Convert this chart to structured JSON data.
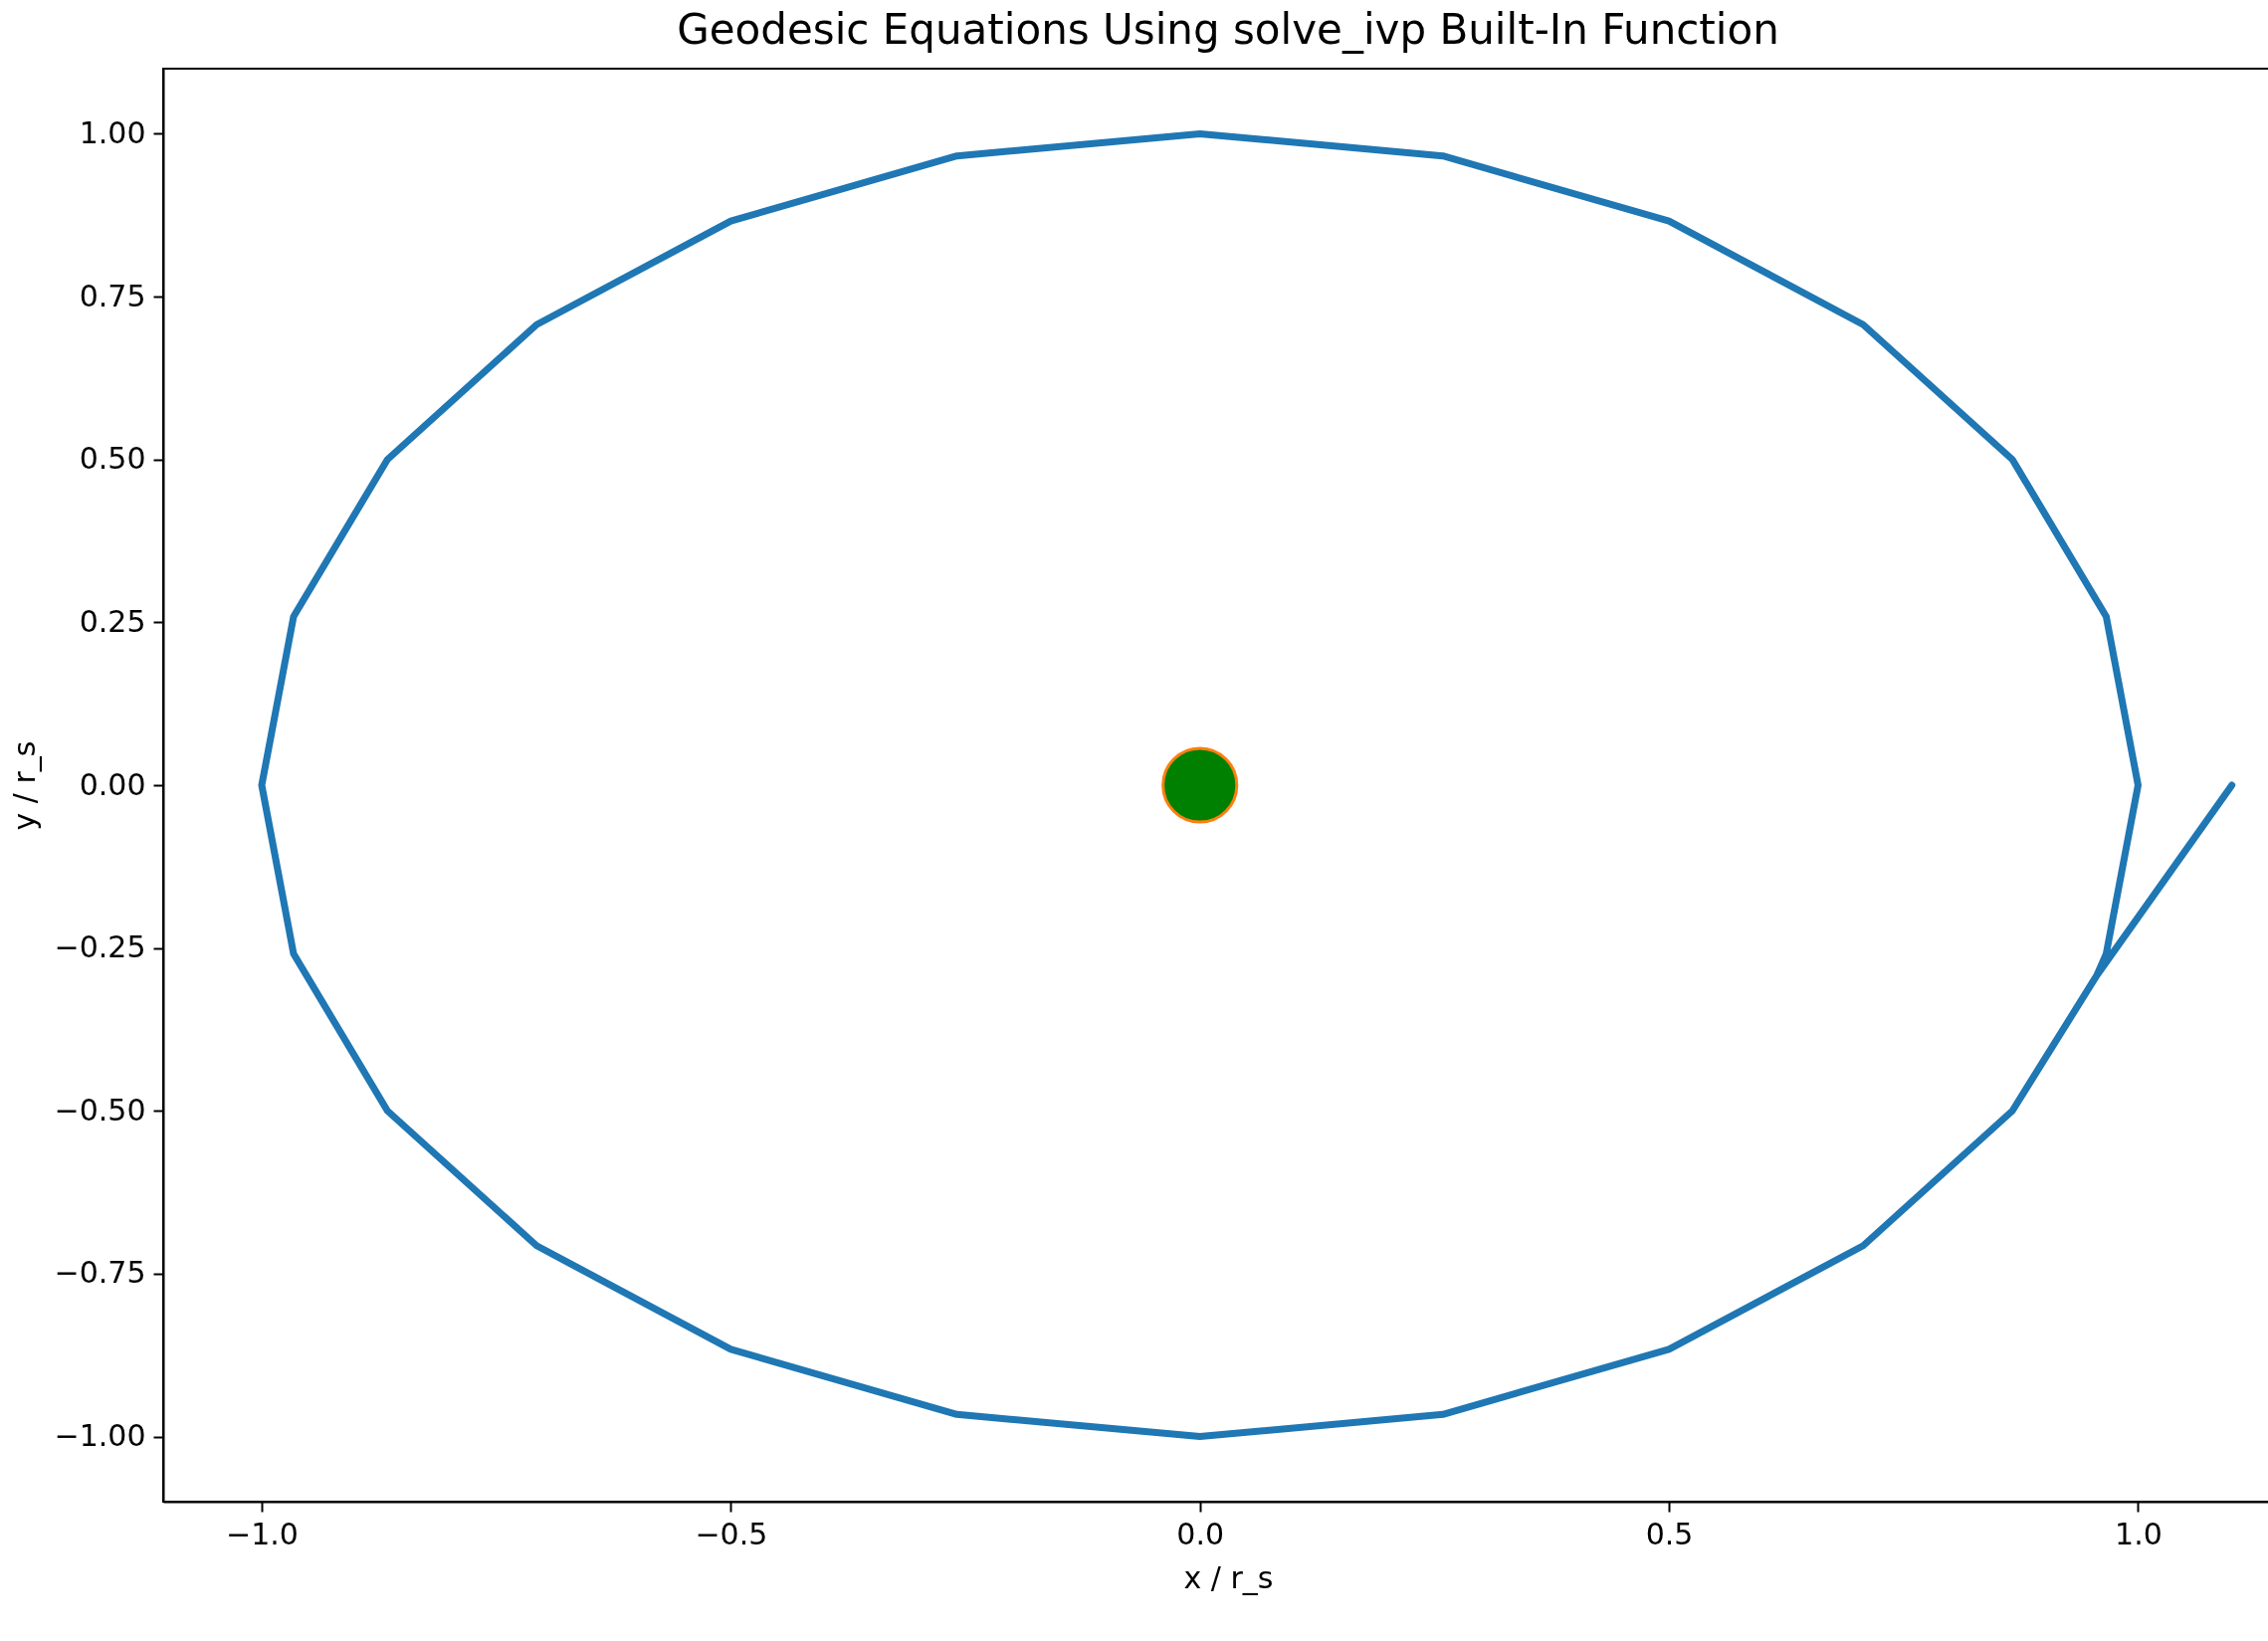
{
  "chart_data": {
    "type": "line",
    "title": "Geodesic Equations Using solve_ivp Built-In Function",
    "xlabel": "x / r_s",
    "ylabel": "y / r_s",
    "grid": false,
    "xlim": [
      -1.105,
      1.165
    ],
    "ylim": [
      -1.1,
      1.1
    ],
    "xticks": [
      {
        "value": -1,
        "label": "−1.0"
      },
      {
        "value": -0.5,
        "label": "−0.5"
      },
      {
        "value": 0,
        "label": "0.0"
      },
      {
        "value": 0.5,
        "label": "0.5"
      },
      {
        "value": 1,
        "label": "1.0"
      }
    ],
    "yticks": [
      {
        "value": -1,
        "label": "−1.00"
      },
      {
        "value": -0.75,
        "label": "−0.75"
      },
      {
        "value": -0.5,
        "label": "−0.50"
      },
      {
        "value": -0.25,
        "label": "−0.25"
      },
      {
        "value": 0,
        "label": "0.00"
      },
      {
        "value": 0.25,
        "label": "0.25"
      },
      {
        "value": 0.5,
        "label": "0.50"
      },
      {
        "value": 0.75,
        "label": "0.75"
      },
      {
        "value": 1,
        "label": "1.00"
      }
    ],
    "series": [
      {
        "color": "#1f77b4",
        "marker": "none",
        "x": [
          1.1,
          0.956,
          0.866,
          0.707,
          0.5,
          0.259,
          0,
          -0.259,
          -0.5,
          -0.707,
          -0.866,
          -0.966,
          -1,
          -0.966,
          -0.866,
          -0.707,
          -0.5,
          -0.259,
          0,
          0.259,
          0.5,
          0.707,
          0.866,
          0.966,
          1,
          0.966,
          0.956
        ],
        "values": [
          0,
          -0.292,
          -0.5,
          -0.707,
          -0.866,
          -0.966,
          -1,
          -0.966,
          -0.866,
          -0.707,
          -0.5,
          -0.259,
          0,
          0.259,
          0.5,
          0.707,
          0.866,
          0.966,
          1,
          0.966,
          0.866,
          0.707,
          0.5,
          0.259,
          0,
          -0.259,
          -0.292
        ]
      },
      {
        "type": "scatter",
        "color": "#008000",
        "marker": "circle",
        "x": [
          0
        ],
        "values": [
          0
        ]
      }
    ]
  }
}
